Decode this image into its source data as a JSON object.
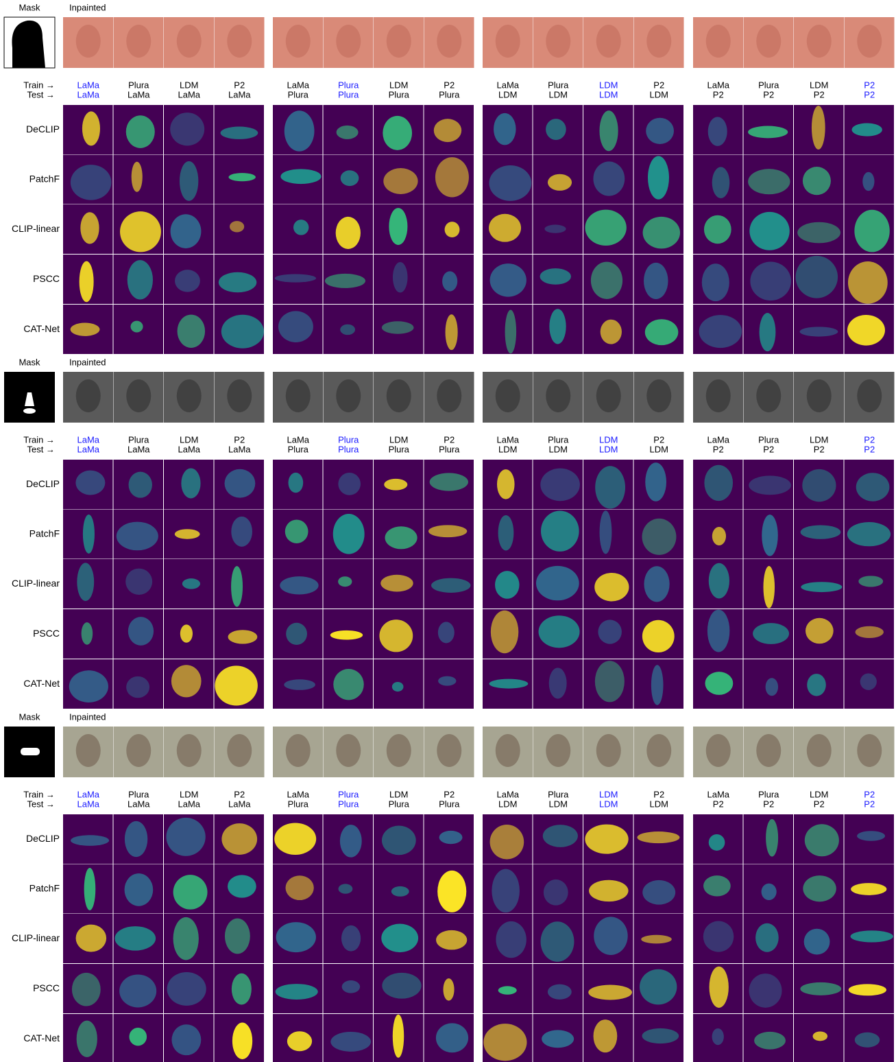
{
  "figure": {
    "blocks": [
      {
        "mask_label": "Mask",
        "inpainted_label": "Inpainted"
      },
      {
        "mask_label": "Mask",
        "inpainted_label": "Inpainted"
      },
      {
        "mask_label": "Mask",
        "inpainted_label": "Inpainted"
      }
    ],
    "axis_labels": {
      "train": "Train →",
      "test": "Test →"
    },
    "highlight_color": "#1a1aff",
    "columns": [
      {
        "train": "LaMa",
        "test": "LaMa"
      },
      {
        "train": "Plura",
        "test": "LaMa"
      },
      {
        "train": "LDM",
        "test": "LaMa"
      },
      {
        "train": "P2",
        "test": "LaMa"
      },
      {
        "train": "LaMa",
        "test": "Plura"
      },
      {
        "train": "Plura",
        "test": "Plura"
      },
      {
        "train": "LDM",
        "test": "Plura"
      },
      {
        "train": "P2",
        "test": "Plura"
      },
      {
        "train": "LaMa",
        "test": "LDM"
      },
      {
        "train": "Plura",
        "test": "LDM"
      },
      {
        "train": "LDM",
        "test": "LDM"
      },
      {
        "train": "P2",
        "test": "LDM"
      },
      {
        "train": "LaMa",
        "test": "P2"
      },
      {
        "train": "Plura",
        "test": "P2"
      },
      {
        "train": "LDM",
        "test": "P2"
      },
      {
        "train": "P2",
        "test": "P2"
      }
    ],
    "methods": [
      "DeCLIP",
      "PatchF",
      "CLIP-linear",
      "PSCC",
      "CAT-Net"
    ]
  }
}
